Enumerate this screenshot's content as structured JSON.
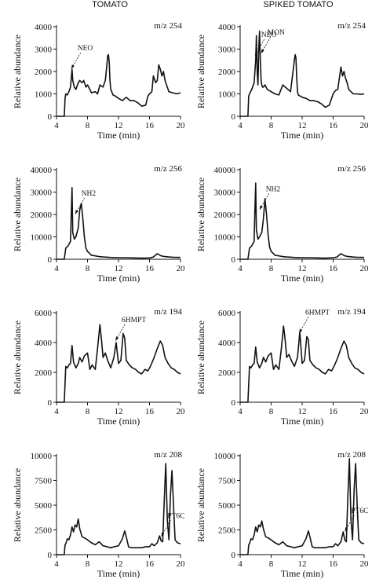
{
  "figure": {
    "column_titles": [
      "TOMATO",
      "SPIKED TOMATO"
    ],
    "xlabel": "Time (min)",
    "ylabel": "Relative abundance"
  },
  "chart_data": [
    {
      "type": "line",
      "column": "TOMATO",
      "ion": "m/z 254",
      "xlabel": "Time (min)",
      "ylabel": "Relative abundance",
      "xlim": [
        4,
        20
      ],
      "ylim": [
        0,
        4000
      ],
      "xticks": [
        4,
        8,
        12,
        16,
        20
      ],
      "yticks": [
        0,
        1000,
        2000,
        3000,
        4000
      ],
      "series": [
        {
          "x": [
            4,
            5,
            5.1,
            5.2,
            5.4,
            5.6,
            5.8,
            5.9,
            6.0,
            6.1,
            6.3,
            6.5,
            6.8,
            7.0,
            7.3,
            7.5,
            7.8,
            8.0,
            8.3,
            8.5,
            9.0,
            9.3,
            9.6,
            10.0,
            10.3,
            10.5,
            10.6,
            10.7,
            10.8,
            10.9,
            11.0,
            11.3,
            11.6,
            12.0,
            12.5,
            13.0,
            13.5,
            14.0,
            14.5,
            15.0,
            15.5,
            15.8,
            16.0,
            16.3,
            16.5,
            16.8,
            17.0,
            17.2,
            17.4,
            17.6,
            17.8,
            18.0,
            18.2,
            18.5,
            19.0,
            19.5,
            20.0
          ],
          "y": [
            0,
            0,
            800,
            1000,
            950,
            1100,
            1300,
            1700,
            2100,
            1600,
            1300,
            1200,
            1500,
            1600,
            1500,
            1600,
            1300,
            1400,
            1200,
            1050,
            1100,
            1000,
            1400,
            1300,
            1600,
            2300,
            2700,
            2750,
            2400,
            1600,
            1200,
            950,
            900,
            800,
            700,
            850,
            700,
            700,
            600,
            450,
            500,
            900,
            1000,
            1100,
            1800,
            1500,
            1600,
            2300,
            2100,
            1800,
            2000,
            1600,
            1400,
            1100,
            1050,
            1000,
            1050
          ]
        }
      ],
      "annotations": [
        {
          "text": "NEO",
          "x": 5.9,
          "y": 2100
        }
      ]
    },
    {
      "type": "line",
      "column": "SPIKED TOMATO",
      "ion": "m/z 254",
      "xlabel": "Time (min)",
      "ylabel": "Relative abundance",
      "xlim": [
        4,
        20
      ],
      "ylim": [
        0,
        4000
      ],
      "xticks": [
        4,
        8,
        12,
        16,
        20
      ],
      "yticks": [
        0,
        1000,
        2000,
        3000,
        4000
      ],
      "series": [
        {
          "x": [
            4,
            5,
            5.1,
            5.2,
            5.5,
            5.8,
            6.0,
            6.1,
            6.2,
            6.3,
            6.4,
            6.5,
            6.6,
            6.7,
            6.8,
            6.9,
            7.0,
            7.2,
            7.5,
            8.0,
            8.5,
            9.0,
            9.5,
            10.0,
            10.5,
            11.0,
            11.1,
            11.2,
            11.3,
            11.4,
            11.5,
            12.0,
            12.5,
            13.0,
            13.5,
            14.0,
            14.5,
            15.0,
            15.5,
            16.0,
            16.3,
            16.6,
            17.0,
            17.2,
            17.4,
            17.6,
            17.8,
            18.0,
            18.3,
            18.6,
            19.0,
            19.5,
            20.0
          ],
          "y": [
            0,
            0,
            900,
            1000,
            1200,
            1500,
            2500,
            3600,
            2000,
            1400,
            3000,
            3800,
            2500,
            1600,
            1400,
            1300,
            1300,
            1400,
            1200,
            1100,
            1000,
            950,
            1400,
            1250,
            1100,
            2500,
            2750,
            2600,
            1700,
            1100,
            950,
            850,
            800,
            700,
            700,
            650,
            550,
            400,
            500,
            1000,
            1150,
            1200,
            2200,
            1800,
            2000,
            1700,
            1500,
            1200,
            1100,
            1000,
            1000,
            980,
            1000
          ]
        }
      ],
      "annotations": [
        {
          "text": "NEO",
          "x": 5.9,
          "y": 2700
        },
        {
          "text": "MON",
          "x": 6.7,
          "y": 2800
        }
      ]
    },
    {
      "type": "line",
      "column": "TOMATO",
      "ion": "m/z 256",
      "xlabel": "Time (min)",
      "ylabel": "Relative abundance",
      "xlim": [
        4,
        20
      ],
      "ylim": [
        0,
        40000
      ],
      "xticks": [
        4,
        8,
        12,
        16,
        20
      ],
      "yticks": [
        0,
        10000,
        20000,
        30000,
        40000
      ],
      "series": [
        {
          "x": [
            4,
            5,
            5.2,
            5.5,
            5.8,
            5.9,
            6.0,
            6.1,
            6.3,
            6.5,
            6.8,
            7.0,
            7.2,
            7.4,
            7.6,
            7.8,
            8.0,
            8.3,
            8.5,
            9.0,
            9.5,
            10.0,
            11.0,
            12.0,
            13.0,
            14.0,
            15.0,
            16.0,
            16.5,
            17.0,
            17.5,
            18.0,
            18.5,
            19.0,
            20.0
          ],
          "y": [
            0,
            0,
            5000,
            6000,
            8000,
            20000,
            32000,
            12000,
            9000,
            10000,
            14000,
            22000,
            25000,
            18000,
            10000,
            5000,
            3500,
            2500,
            1800,
            1500,
            1200,
            1000,
            800,
            700,
            700,
            600,
            500,
            600,
            1000,
            2500,
            1500,
            1200,
            1000,
            900,
            800
          ]
        }
      ],
      "annotations": [
        {
          "text": "NH2",
          "x": 6.4,
          "y": 20000
        }
      ]
    },
    {
      "type": "line",
      "column": "SPIKED TOMATO",
      "ion": "m/z 256",
      "xlabel": "Time (min)",
      "ylabel": "Relative abundance",
      "xlim": [
        4,
        20
      ],
      "ylim": [
        0,
        40000
      ],
      "xticks": [
        4,
        8,
        12,
        16,
        20
      ],
      "yticks": [
        0,
        10000,
        20000,
        30000,
        40000
      ],
      "series": [
        {
          "x": [
            4,
            5,
            5.2,
            5.5,
            5.8,
            5.9,
            6.0,
            6.1,
            6.3,
            6.5,
            6.8,
            7.0,
            7.2,
            7.4,
            7.6,
            7.8,
            8.0,
            8.3,
            8.5,
            9.0,
            9.5,
            10.0,
            11.0,
            12.0,
            13.0,
            14.0,
            15.0,
            16.0,
            16.5,
            17.0,
            17.5,
            18.0,
            18.5,
            19.0,
            20.0
          ],
          "y": [
            0,
            0,
            5000,
            6000,
            8000,
            22000,
            34000,
            13000,
            9000,
            10000,
            12000,
            18000,
            27000,
            20000,
            11000,
            5500,
            3500,
            2500,
            1800,
            1500,
            1200,
            1000,
            800,
            700,
            700,
            600,
            500,
            700,
            1000,
            2500,
            1500,
            1200,
            1000,
            900,
            800
          ]
        }
      ],
      "annotations": [
        {
          "text": "NH2",
          "x": 6.5,
          "y": 22000
        }
      ]
    },
    {
      "type": "line",
      "column": "TOMATO",
      "ion": "m/z 194",
      "xlabel": "Time (min)",
      "ylabel": "Relative abundance",
      "xlim": [
        4,
        20
      ],
      "ylim": [
        0,
        6000
      ],
      "xticks": [
        4,
        8,
        12,
        16,
        20
      ],
      "yticks": [
        0,
        2000,
        4000,
        6000
      ],
      "series": [
        {
          "x": [
            4,
            5,
            5.2,
            5.4,
            5.6,
            5.8,
            6.0,
            6.2,
            6.5,
            6.8,
            7.0,
            7.3,
            7.6,
            8.0,
            8.3,
            8.6,
            9.0,
            9.3,
            9.6,
            9.8,
            10.0,
            10.3,
            10.6,
            11.0,
            11.4,
            11.7,
            12.0,
            12.3,
            12.6,
            12.8,
            13.0,
            13.4,
            13.8,
            14.2,
            14.6,
            15.0,
            15.4,
            15.8,
            16.2,
            16.6,
            17.0,
            17.4,
            17.7,
            18.0,
            18.4,
            18.8,
            19.2,
            19.6,
            20.0
          ],
          "y": [
            0,
            0,
            2400,
            2300,
            2500,
            2600,
            3800,
            2700,
            2300,
            2600,
            3000,
            2700,
            3100,
            3300,
            2200,
            2500,
            2200,
            3600,
            5200,
            4200,
            3000,
            3300,
            2800,
            2300,
            3000,
            4000,
            2600,
            2800,
            4600,
            4300,
            2800,
            2500,
            2300,
            2200,
            2000,
            1900,
            2200,
            2100,
            2500,
            3000,
            3600,
            4100,
            3800,
            3000,
            2600,
            2300,
            2200,
            2000,
            1900
          ]
        }
      ],
      "annotations": [
        {
          "text": "6HMPT",
          "x": 11.6,
          "y": 4100
        }
      ]
    },
    {
      "type": "line",
      "column": "SPIKED TOMATO",
      "ion": "m/z 194",
      "xlabel": "Time (min)",
      "ylabel": "Relative abundance",
      "xlim": [
        4,
        20
      ],
      "ylim": [
        0,
        6000
      ],
      "xticks": [
        4,
        8,
        12,
        16,
        20
      ],
      "yticks": [
        0,
        2000,
        4000,
        6000
      ],
      "series": [
        {
          "x": [
            4,
            5,
            5.2,
            5.4,
            5.6,
            5.8,
            6.0,
            6.2,
            6.5,
            6.8,
            7.0,
            7.3,
            7.6,
            8.0,
            8.3,
            8.6,
            9.0,
            9.3,
            9.6,
            9.8,
            10.0,
            10.3,
            10.6,
            11.0,
            11.4,
            11.7,
            12.0,
            12.3,
            12.6,
            12.8,
            13.0,
            13.4,
            13.8,
            14.2,
            14.6,
            15.0,
            15.4,
            15.8,
            16.2,
            16.6,
            17.0,
            17.4,
            17.7,
            18.0,
            18.4,
            18.8,
            19.2,
            19.6,
            20.0
          ],
          "y": [
            0,
            0,
            2400,
            2300,
            2500,
            2600,
            3700,
            2700,
            2300,
            2600,
            3000,
            2700,
            3100,
            3300,
            2200,
            2500,
            2200,
            3500,
            5100,
            4200,
            3000,
            3200,
            2800,
            2400,
            3000,
            4700,
            2600,
            2800,
            4400,
            4200,
            2800,
            2500,
            2300,
            2200,
            2000,
            1900,
            2200,
            2100,
            2500,
            3000,
            3600,
            4100,
            3800,
            3000,
            2600,
            2300,
            2200,
            2000,
            1900
          ]
        }
      ],
      "annotations": [
        {
          "text": "6HMPT",
          "x": 11.6,
          "y": 4600
        }
      ]
    },
    {
      "type": "line",
      "column": "TOMATO",
      "ion": "m/z 208",
      "xlabel": "Time (min)",
      "ylabel": "Relative abundance",
      "xlim": [
        4,
        20
      ],
      "ylim": [
        0,
        10000
      ],
      "xticks": [
        4,
        8,
        12,
        16,
        20
      ],
      "yticks": [
        0,
        2500,
        5000,
        7500,
        10000
      ],
      "series": [
        {
          "x": [
            4,
            5,
            5.1,
            5.2,
            5.4,
            5.6,
            5.8,
            6.0,
            6.2,
            6.4,
            6.6,
            6.8,
            7.0,
            7.3,
            7.6,
            8.0,
            8.5,
            9.0,
            9.5,
            10.0,
            10.5,
            11.0,
            11.5,
            12.0,
            12.5,
            12.8,
            13.0,
            13.3,
            13.6,
            14.0,
            14.5,
            15.0,
            15.5,
            16.0,
            16.3,
            16.6,
            17.0,
            17.3,
            17.5,
            17.7,
            17.9,
            18.1,
            18.3,
            18.5,
            18.7,
            18.9,
            19.1,
            19.3,
            19.6,
            20.0
          ],
          "y": [
            0,
            0,
            1000,
            1100,
            1600,
            1500,
            2000,
            2800,
            2300,
            3000,
            2800,
            3600,
            2600,
            1800,
            1700,
            1500,
            1200,
            1000,
            1300,
            900,
            800,
            700,
            800,
            900,
            1600,
            2400,
            1800,
            800,
            700,
            700,
            700,
            700,
            800,
            800,
            1100,
            900,
            1200,
            1900,
            1400,
            1300,
            5500,
            9200,
            3500,
            1500,
            6000,
            8500,
            5000,
            1500,
            1200,
            1100
          ]
        }
      ],
      "annotations": [
        {
          "text": "PT6C",
          "x": 17.5,
          "y": 1800
        }
      ]
    },
    {
      "type": "line",
      "column": "SPIKED TOMATO",
      "ion": "m/z 208",
      "xlabel": "Time (min)",
      "ylabel": "Relative abundance",
      "xlim": [
        4,
        20
      ],
      "ylim": [
        0,
        10000
      ],
      "xticks": [
        4,
        8,
        12,
        16,
        20
      ],
      "yticks": [
        0,
        2500,
        5000,
        7500,
        10000
      ],
      "series": [
        {
          "x": [
            4,
            5,
            5.1,
            5.2,
            5.4,
            5.6,
            5.8,
            6.0,
            6.2,
            6.4,
            6.6,
            6.8,
            7.0,
            7.3,
            7.6,
            8.0,
            8.5,
            9.0,
            9.5,
            10.0,
            10.5,
            11.0,
            11.5,
            12.0,
            12.5,
            12.8,
            13.0,
            13.3,
            13.6,
            14.0,
            14.5,
            15.0,
            15.5,
            16.0,
            16.3,
            16.6,
            17.0,
            17.3,
            17.5,
            17.7,
            17.9,
            18.1,
            18.3,
            18.5,
            18.7,
            18.9,
            19.1,
            19.3,
            19.6,
            20.0
          ],
          "y": [
            0,
            0,
            1000,
            1100,
            1600,
            1500,
            2000,
            2800,
            2300,
            3000,
            2800,
            3400,
            2600,
            1800,
            1700,
            1500,
            1200,
            1000,
            1300,
            900,
            800,
            700,
            800,
            900,
            1600,
            2400,
            1800,
            800,
            700,
            700,
            700,
            700,
            800,
            800,
            1100,
            900,
            1300,
            2300,
            1500,
            1300,
            6000,
            9700,
            3500,
            1500,
            6500,
            9200,
            5000,
            1500,
            1200,
            1100
          ]
        }
      ],
      "annotations": [
        {
          "text": "PT6C",
          "x": 17.5,
          "y": 2300
        }
      ]
    }
  ]
}
